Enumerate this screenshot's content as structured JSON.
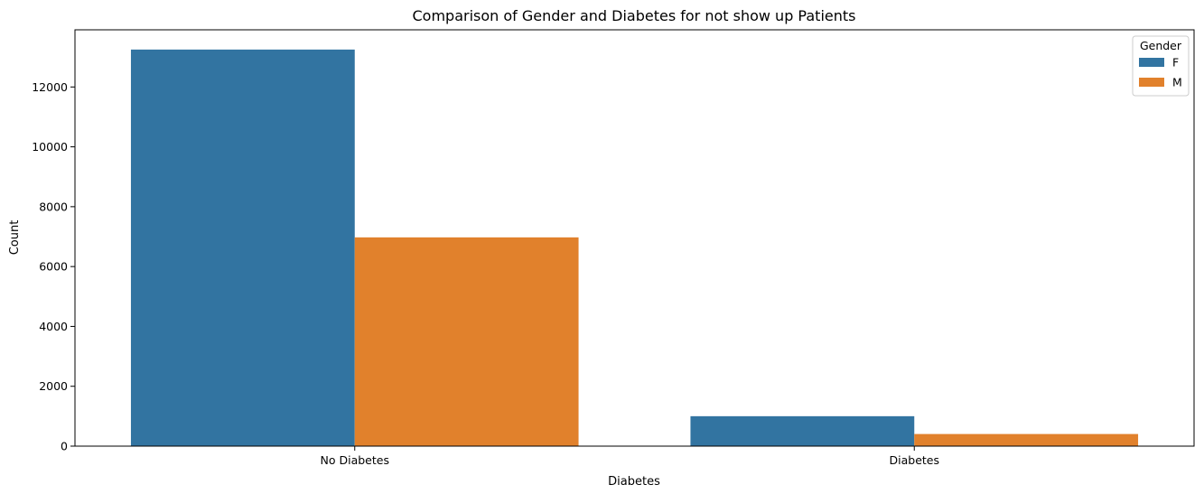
{
  "chart_data": {
    "type": "bar",
    "title": "Comparison of Gender and Diabetes for not show up Patients",
    "xlabel": "Diabetes",
    "ylabel": "Count",
    "categories": [
      "No Diabetes",
      "Diabetes"
    ],
    "series": [
      {
        "name": "F",
        "color": "#3274a1",
        "values": [
          13250,
          1000
        ]
      },
      {
        "name": "M",
        "color": "#e1812c",
        "values": [
          6975,
          405
        ]
      }
    ],
    "ylim": [
      0,
      13910
    ],
    "yticks": [
      0,
      2000,
      4000,
      6000,
      8000,
      10000,
      12000
    ],
    "legend": {
      "title": "Gender",
      "placement": "top-right"
    },
    "grid": false
  }
}
